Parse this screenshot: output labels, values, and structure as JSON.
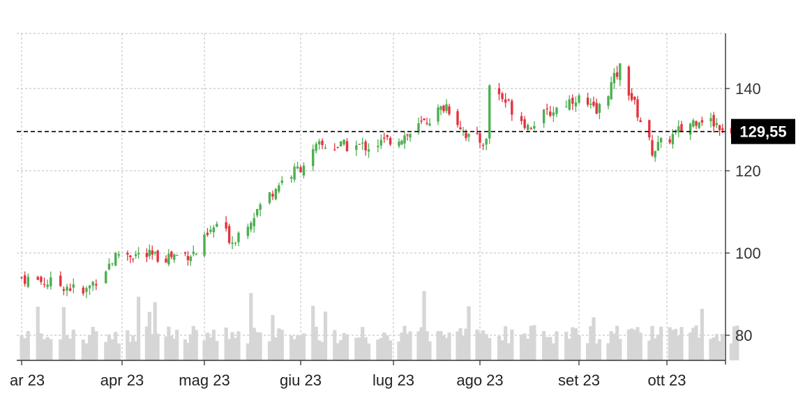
{
  "chart_data": {
    "type": "candlestick",
    "title": "",
    "xlabel": "",
    "ylabel": "",
    "x_ticks": [
      {
        "label": "ar 23",
        "date": "2023-03-01"
      },
      {
        "label": "apr 23",
        "date": "2023-04-01"
      },
      {
        "label": "mag 23",
        "date": "2023-05-01"
      },
      {
        "label": "giu 23",
        "date": "2023-06-01"
      },
      {
        "label": "lug 23",
        "date": "2023-07-01"
      },
      {
        "label": "ago 23",
        "date": "2023-08-01"
      },
      {
        "label": "set 23",
        "date": "2023-09-01"
      },
      {
        "label": "ott 23",
        "date": "2023-10-01"
      }
    ],
    "y_ticks": [
      80,
      100,
      120,
      140
    ],
    "y_tick_labels": [
      "80",
      "100",
      "120",
      "140"
    ],
    "ylim": [
      74,
      154
    ],
    "xlim": [
      "2023-03-01",
      "2023-10-25"
    ],
    "grid": true,
    "current_price": 129.55,
    "current_price_label": "129,55",
    "colors": {
      "up": "#4caf50",
      "down": "#e5323e",
      "volume": "#d6d6d6",
      "grid": "#c8c8c8",
      "price_line": "#000000",
      "price_tag_bg": "#000000",
      "axis": "#333333"
    },
    "key_prices": [
      {
        "date": "2023-03-01",
        "close": 94
      },
      {
        "date": "2023-03-15",
        "close": 92
      },
      {
        "date": "2023-03-20",
        "close": 90
      },
      {
        "date": "2023-03-31",
        "close": 100
      },
      {
        "date": "2023-04-14",
        "close": 99
      },
      {
        "date": "2023-04-28",
        "close": 100
      },
      {
        "date": "2023-05-05",
        "close": 107
      },
      {
        "date": "2023-05-10",
        "close": 103
      },
      {
        "date": "2023-05-25",
        "close": 117
      },
      {
        "date": "2023-06-01",
        "close": 121
      },
      {
        "date": "2023-06-07",
        "close": 126
      },
      {
        "date": "2023-06-23",
        "close": 126
      },
      {
        "date": "2023-07-07",
        "close": 129
      },
      {
        "date": "2023-07-20",
        "close": 136
      },
      {
        "date": "2023-07-28",
        "close": 128
      },
      {
        "date": "2023-08-03",
        "close": 127
      },
      {
        "date": "2023-08-04",
        "close": 141
      },
      {
        "date": "2023-08-16",
        "close": 131
      },
      {
        "date": "2023-08-31",
        "close": 138
      },
      {
        "date": "2023-09-07",
        "close": 134
      },
      {
        "date": "2023-09-15",
        "close": 145
      },
      {
        "date": "2023-09-26",
        "close": 125
      },
      {
        "date": "2023-10-12",
        "close": 133
      },
      {
        "date": "2023-10-25",
        "close": 129.55
      }
    ],
    "volume_range": [
      75,
      92
    ]
  }
}
